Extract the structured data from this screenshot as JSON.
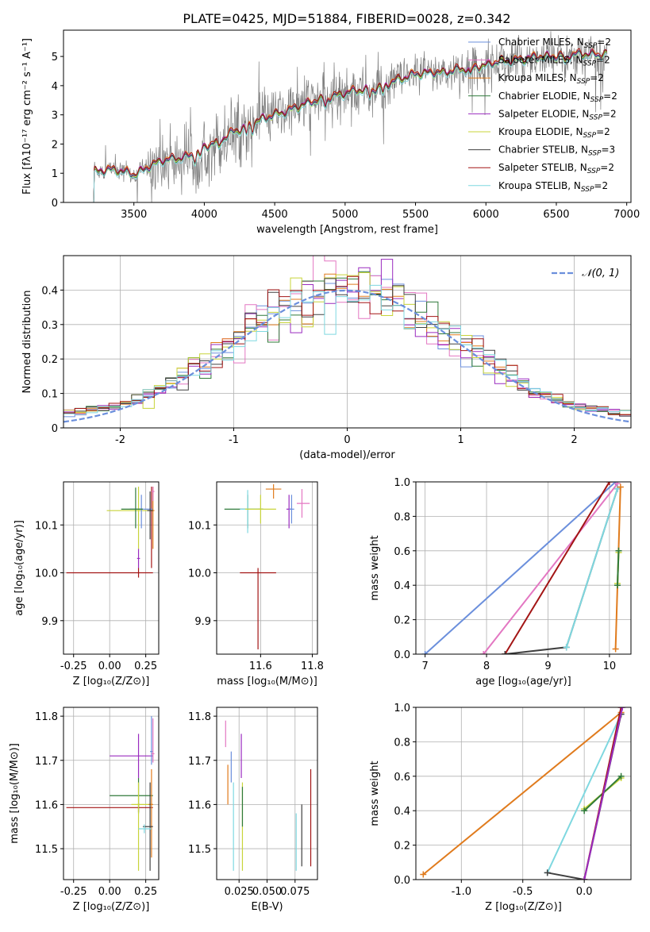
{
  "title": "PLATE=0425, MJD=51884, FIBERID=0028, z=0.342",
  "colors": {
    "chabrier_miles": "#6b8fdc",
    "salpeter_miles": "#e377c2",
    "kroupa_miles": "#e07b1d",
    "chabrier_elodie": "#2f7a3a",
    "salpeter_elodie": "#9a2bbf",
    "kroupa_elodie": "#c8d43a",
    "chabrier_stelib": "#404040",
    "salpeter_stelib": "#a31515",
    "kroupa_stelib": "#7fd8e0",
    "data": "#808080",
    "normal": "#6b8fdc"
  },
  "chart_data": [
    {
      "id": "spectrum",
      "type": "line",
      "xlabel": "wavelength [Angstrom, rest frame]",
      "ylabel": "Flux [fλ10⁻¹⁷ erg cm⁻² s⁻¹ A⁻¹]",
      "xlim": [
        3000,
        7030
      ],
      "ylim": [
        0,
        5.9
      ],
      "xticks": [
        3500,
        4000,
        4500,
        5000,
        5500,
        6000,
        6500,
        7000
      ],
      "yticks": [
        0,
        1,
        2,
        3,
        4,
        5
      ],
      "legend_position": "top-right",
      "data_range": [
        3215,
        6860
      ],
      "continuum": [
        [
          3215,
          0
        ],
        [
          3216,
          1.05
        ],
        [
          3300,
          1.12
        ],
        [
          3400,
          1.1
        ],
        [
          3500,
          0.95
        ],
        [
          3600,
          1.2
        ],
        [
          3700,
          1.45
        ],
        [
          3800,
          1.5
        ],
        [
          3900,
          1.6
        ],
        [
          4000,
          1.9
        ],
        [
          4100,
          2.1
        ],
        [
          4200,
          2.4
        ],
        [
          4300,
          2.6
        ],
        [
          4400,
          2.85
        ],
        [
          4500,
          3.0
        ],
        [
          4600,
          3.15
        ],
        [
          4700,
          3.35
        ],
        [
          4800,
          3.5
        ],
        [
          4900,
          3.6
        ],
        [
          5000,
          3.75
        ],
        [
          5100,
          3.85
        ],
        [
          5200,
          3.85
        ],
        [
          5300,
          4.05
        ],
        [
          5400,
          4.25
        ],
        [
          5500,
          4.4
        ],
        [
          5600,
          4.45
        ],
        [
          5700,
          4.45
        ],
        [
          5800,
          4.55
        ],
        [
          5900,
          4.6
        ],
        [
          6000,
          4.7
        ],
        [
          6100,
          4.85
        ],
        [
          6200,
          4.85
        ],
        [
          6300,
          4.95
        ],
        [
          6400,
          5.0
        ],
        [
          6500,
          5.0
        ],
        [
          6600,
          5.05
        ],
        [
          6700,
          5.1
        ],
        [
          6800,
          5.05
        ],
        [
          6860,
          5.1
        ]
      ],
      "series": [
        {
          "name": "Chabrier MILES, N",
          "sub": "SSP",
          "suffix": "=2",
          "color": "#6b8fdc",
          "offset": 0.0
        },
        {
          "name": "Salpeter MILES, N",
          "sub": "SSP",
          "suffix": "=2",
          "color": "#e377c2",
          "offset": 0.03
        },
        {
          "name": "Kroupa MILES, N",
          "sub": "SSP",
          "suffix": "=2",
          "color": "#e07b1d",
          "offset": 0.05
        },
        {
          "name": "Chabrier ELODIE, N",
          "sub": "SSP",
          "suffix": "=2",
          "color": "#2f7a3a",
          "offset": -0.02
        },
        {
          "name": "Salpeter ELODIE, N",
          "sub": "SSP",
          "suffix": "=2",
          "color": "#9a2bbf",
          "offset": 0.02
        },
        {
          "name": "Kroupa ELODIE, N",
          "sub": "SSP",
          "suffix": "=2",
          "color": "#c8d43a",
          "offset": -0.04
        },
        {
          "name": "Chabrier STELIB, N",
          "sub": "SSP",
          "suffix": "=3",
          "color": "#404040",
          "offset": -0.01
        },
        {
          "name": "Salpeter STELIB, N",
          "sub": "SSP",
          "suffix": "=2",
          "color": "#a31515",
          "offset": 0.04
        },
        {
          "name": "Kroupa STELIB, N",
          "sub": "SSP",
          "suffix": "=2",
          "color": "#7fd8e0",
          "offset": -0.08
        }
      ]
    },
    {
      "id": "residuals",
      "type": "line",
      "xlabel": "(data-model)/error",
      "ylabel": "Normed distribution",
      "xlim": [
        -2.5,
        2.5
      ],
      "ylim": [
        0,
        0.5
      ],
      "xticks": [
        -2,
        -1,
        0,
        1,
        2
      ],
      "yticks": [
        0.0,
        0.1,
        0.2,
        0.3,
        0.4
      ],
      "grid": true,
      "legend_position": "top-right",
      "reference": {
        "name": "𝒩(0, 1)"
      },
      "bin_width": 0.1,
      "series_colors": [
        "#6b8fdc",
        "#e377c2",
        "#e07b1d",
        "#2f7a3a",
        "#9a2bbf",
        "#c8d43a",
        "#404040",
        "#a31515",
        "#7fd8e0"
      ]
    },
    {
      "id": "age_vs_Z",
      "type": "scatter",
      "xlabel": "Z [log₁₀(Z/Z⊙)]",
      "ylabel": "age  [log₁₀(age/yr)]",
      "xlim": [
        -0.32,
        0.34
      ],
      "ylim": [
        9.83,
        10.19
      ],
      "xticks": [
        "-0.25",
        "0.00",
        "0.25"
      ],
      "xtick_values": [
        -0.25,
        0.0,
        0.25
      ],
      "yticks": [
        "9.9",
        "10.0",
        "10.1"
      ],
      "ytick_values": [
        9.9,
        10.0,
        10.1
      ],
      "grid": true,
      "points": [
        {
          "x": 0.29,
          "y": 10.13,
          "xerr": [
            0.01,
            0.01
          ],
          "yerr": [
            0.12,
            0.05
          ],
          "color": "#a31515"
        },
        {
          "x": 0.2,
          "y": 10.0,
          "xerr": [
            0.5,
            0.1
          ],
          "yerr": [
            0.01,
            0.01
          ],
          "color": "#a31515"
        },
        {
          "x": 0.2,
          "y": 10.13,
          "xerr": [
            0.22,
            0.1
          ],
          "yerr": [
            0.08,
            0.05
          ],
          "color": "#c8d43a"
        },
        {
          "x": 0.22,
          "y": 10.133,
          "xerr": [
            0.08,
            0.08
          ],
          "yerr": [
            0.04,
            0.03
          ],
          "color": "#6b8fdc"
        },
        {
          "x": 0.18,
          "y": 10.133,
          "xerr": [
            0.1,
            0.05
          ],
          "yerr": [
            0.04,
            0.045
          ],
          "color": "#2f7a3a"
        },
        {
          "x": 0.3,
          "y": 10.13,
          "xerr": [
            0.02,
            0.01
          ],
          "yerr": [
            0.08,
            0.05
          ],
          "color": "#e07b1d"
        },
        {
          "x": 0.28,
          "y": 10.13,
          "xerr": [
            0.02,
            0.02
          ],
          "yerr": [
            0.06,
            0.04
          ],
          "color": "#404040"
        },
        {
          "x": 0.2,
          "y": 10.03,
          "xerr": [
            0.01,
            0.01
          ],
          "yerr": [
            0.02,
            0.02
          ],
          "color": "#9a2bbf"
        },
        {
          "x": 0.3,
          "y": 10.17,
          "xerr": [
            0.01,
            0.01
          ],
          "yerr": [
            0.02,
            0.01
          ],
          "color": "#e377c2"
        }
      ]
    },
    {
      "id": "age_vs_mass",
      "type": "scatter",
      "xlabel": "mass [log₁₀(M/M⊙)]",
      "xlim": [
        11.43,
        11.82
      ],
      "ylim": [
        9.83,
        10.19
      ],
      "xticks": [
        "11.6",
        "11.8"
      ],
      "xtick_values": [
        11.6,
        11.8
      ],
      "yticks": [
        "9.9",
        "10.0",
        "10.1"
      ],
      "ytick_values": [
        9.9,
        10.0,
        10.1
      ],
      "grid": true,
      "points": [
        {
          "x": 11.59,
          "y": 10.0,
          "xerr": [
            0.07,
            0.07
          ],
          "yerr": [
            0.16,
            0.01
          ],
          "color": "#a31515"
        },
        {
          "x": 11.55,
          "y": 10.133,
          "xerr": [
            0.09,
            0.06
          ],
          "yerr": [
            0.04,
            0.03
          ],
          "color": "#2f7a3a"
        },
        {
          "x": 11.55,
          "y": 10.133,
          "xerr": [
            0.03,
            0.04
          ],
          "yerr": [
            0.05,
            0.04
          ],
          "color": "#7fd8e0"
        },
        {
          "x": 11.6,
          "y": 10.133,
          "xerr": [
            0.06,
            0.06
          ],
          "yerr": [
            0.03,
            0.03
          ],
          "color": "#c8d43a"
        },
        {
          "x": 11.65,
          "y": 10.175,
          "xerr": [
            0.03,
            0.03
          ],
          "yerr": [
            0.02,
            0.01
          ],
          "color": "#e07b1d"
        },
        {
          "x": 11.71,
          "y": 10.133,
          "xerr": [
            0.01,
            0.01
          ],
          "yerr": [
            0.04,
            0.03
          ],
          "color": "#9a2bbf"
        },
        {
          "x": 11.76,
          "y": 10.145,
          "xerr": [
            0.02,
            0.03
          ],
          "yerr": [
            0.03,
            0.03
          ],
          "color": "#e377c2"
        },
        {
          "x": 11.72,
          "y": 10.133,
          "xerr": [
            0.01,
            0.01
          ],
          "yerr": [
            0.03,
            0.03
          ],
          "color": "#6b8fdc"
        }
      ]
    },
    {
      "id": "mass_weight_vs_age",
      "type": "line",
      "xlabel": "age  [log₁₀(age/yr)]",
      "ylabel": "mass weight",
      "xlim": [
        6.85,
        10.35
      ],
      "ylim": [
        0,
        1
      ],
      "xticks": [
        7,
        8,
        9,
        10
      ],
      "yticks": [
        "0.0",
        "0.2",
        "0.4",
        "0.6",
        "0.8",
        "1.0"
      ],
      "ytick_values": [
        0,
        0.2,
        0.4,
        0.6,
        0.8,
        1.0
      ],
      "grid": true,
      "series": [
        {
          "color": "#6b8fdc",
          "points": [
            [
              7.0,
              0.0
            ],
            [
              10.1,
              1.0
            ]
          ]
        },
        {
          "color": "#e377c2",
          "points": [
            [
              7.95,
              0.0
            ],
            [
              10.13,
              0.99
            ]
          ]
        },
        {
          "color": "#a31515",
          "points": [
            [
              8.3,
              0.0
            ],
            [
              10.0,
              1.0
            ]
          ]
        },
        {
          "color": "#404040",
          "points": [
            [
              8.3,
              0.0
            ],
            [
              9.3,
              0.04
            ],
            [
              10.13,
              0.96
            ]
          ]
        },
        {
          "color": "#7fd8e0",
          "points": [
            [
              9.3,
              0.04
            ],
            [
              10.13,
              0.96
            ]
          ]
        },
        {
          "color": "#e07b1d",
          "points": [
            [
              10.1,
              0.03
            ],
            [
              10.18,
              0.97
            ]
          ]
        },
        {
          "color": "#c8d43a",
          "points": [
            [
              10.13,
              0.41
            ],
            [
              10.15,
              0.59
            ]
          ]
        },
        {
          "color": "#2f7a3a",
          "points": [
            [
              10.13,
              0.4
            ],
            [
              10.15,
              0.6
            ]
          ]
        }
      ]
    },
    {
      "id": "mass_vs_Z",
      "type": "scatter",
      "xlabel": "Z [log₁₀(Z/Z⊙)]",
      "ylabel": "mass [log₁₀(M/M⊙)]",
      "xlim": [
        -0.32,
        0.34
      ],
      "ylim": [
        11.43,
        11.82
      ],
      "xticks": [
        "-0.25",
        "0.00",
        "0.25"
      ],
      "xtick_values": [
        -0.25,
        0.0,
        0.25
      ],
      "yticks": [
        "11.5",
        "11.6",
        "11.7",
        "11.8"
      ],
      "ytick_values": [
        11.5,
        11.6,
        11.7,
        11.8
      ],
      "grid": true,
      "points": [
        {
          "x": 0.2,
          "y": 11.593,
          "xerr": [
            0.5,
            0.1
          ],
          "yerr": [
            0.01,
            0.01
          ],
          "color": "#a31515"
        },
        {
          "x": 0.2,
          "y": 11.62,
          "xerr": [
            0.2,
            0.1
          ],
          "yerr": [
            0.04,
            0.04
          ],
          "color": "#2f7a3a"
        },
        {
          "x": 0.2,
          "y": 11.71,
          "xerr": [
            0.2,
            0.1
          ],
          "yerr": [
            0.05,
            0.05
          ],
          "color": "#9a2bbf"
        },
        {
          "x": 0.2,
          "y": 11.6,
          "xerr": [
            0.05,
            0.1
          ],
          "yerr": [
            0.15,
            0.05
          ],
          "color": "#c8d43a"
        },
        {
          "x": 0.29,
          "y": 11.6,
          "xerr": [
            0.02,
            0.01
          ],
          "yerr": [
            0.12,
            0.08
          ],
          "color": "#e07b1d"
        },
        {
          "x": 0.28,
          "y": 11.55,
          "xerr": [
            0.05,
            0.02
          ],
          "yerr": [
            0.1,
            0.1
          ],
          "color": "#404040"
        },
        {
          "x": 0.24,
          "y": 11.545,
          "xerr": [
            0.04,
            0.05
          ],
          "yerr": [
            0.01,
            0.01
          ],
          "color": "#7fd8e0"
        },
        {
          "x": 0.29,
          "y": 11.72,
          "xerr": [
            0.01,
            0.01
          ],
          "yerr": [
            0.03,
            0.08
          ],
          "color": "#6b8fdc"
        },
        {
          "x": 0.3,
          "y": 11.715,
          "xerr": [
            0.01,
            0.01
          ],
          "yerr": [
            0.02,
            0.08
          ],
          "color": "#e377c2"
        }
      ]
    },
    {
      "id": "mass_vs_ebv",
      "type": "scatter",
      "xlabel": "E(B-V)",
      "xlim": [
        0.005,
        0.095
      ],
      "ylim": [
        11.43,
        11.82
      ],
      "xticks": [
        "0.025",
        "0.050",
        "0.075"
      ],
      "xtick_values": [
        0.025,
        0.05,
        0.075
      ],
      "yticks": [
        "11.5",
        "11.6",
        "11.7",
        "11.8"
      ],
      "ytick_values": [
        11.5,
        11.6,
        11.7,
        11.8
      ],
      "grid": true,
      "points": [
        {
          "x": 0.013,
          "y": 11.76,
          "yerr": [
            0.03,
            0.03
          ],
          "color": "#e377c2"
        },
        {
          "x": 0.015,
          "y": 11.65,
          "yerr": [
            0.05,
            0.04
          ],
          "color": "#e07b1d"
        },
        {
          "x": 0.018,
          "y": 11.68,
          "yerr": [
            0.03,
            0.04
          ],
          "color": "#6b8fdc"
        },
        {
          "x": 0.02,
          "y": 11.6,
          "yerr": [
            0.15,
            0.05
          ],
          "color": "#7fd8e0"
        },
        {
          "x": 0.027,
          "y": 11.71,
          "yerr": [
            0.05,
            0.05
          ],
          "color": "#9a2bbf"
        },
        {
          "x": 0.028,
          "y": 11.55,
          "yerr": [
            0.1,
            0.1
          ],
          "color": "#c8d43a"
        },
        {
          "x": 0.028,
          "y": 11.6,
          "yerr": [
            0.05,
            0.04
          ],
          "color": "#2f7a3a"
        },
        {
          "x": 0.076,
          "y": 11.53,
          "yerr": [
            0.08,
            0.05
          ],
          "color": "#7fd8e0"
        },
        {
          "x": 0.081,
          "y": 11.53,
          "yerr": [
            0.07,
            0.07
          ],
          "color": "#404040"
        },
        {
          "x": 0.089,
          "y": 11.57,
          "yerr": [
            0.11,
            0.11
          ],
          "color": "#a31515"
        }
      ]
    },
    {
      "id": "mass_weight_vs_Z",
      "type": "line",
      "xlabel": "Z [log₁₀(Z/Z⊙)]",
      "ylabel": "mass weight",
      "xlim": [
        -1.37,
        0.38
      ],
      "ylim": [
        0,
        1
      ],
      "xticks": [
        "-1.0",
        "-0.5",
        "0.0"
      ],
      "xtick_values": [
        -1.0,
        -0.5,
        0.0
      ],
      "yticks": [
        "0.0",
        "0.2",
        "0.4",
        "0.6",
        "0.8",
        "1.0"
      ],
      "ytick_values": [
        0,
        0.2,
        0.4,
        0.6,
        0.8,
        1.0
      ],
      "grid": true,
      "series": [
        {
          "color": "#e07b1d",
          "points": [
            [
              -1.31,
              0.03
            ],
            [
              0.3,
              0.97
            ]
          ]
        },
        {
          "color": "#7fd8e0",
          "points": [
            [
              -0.3,
              0.04
            ],
            [
              0.3,
              0.96
            ]
          ]
        },
        {
          "color": "#404040",
          "points": [
            [
              -0.3,
              0.04
            ],
            [
              0.0,
              0.0
            ],
            [
              0.3,
              0.96
            ]
          ]
        },
        {
          "color": "#c8d43a",
          "points": [
            [
              0.0,
              0.41
            ],
            [
              0.3,
              0.59
            ]
          ]
        },
        {
          "color": "#2f7a3a",
          "points": [
            [
              0.0,
              0.4
            ],
            [
              0.3,
              0.6
            ]
          ]
        },
        {
          "color": "#a31515",
          "points": [
            [
              0.0,
              0.0
            ],
            [
              0.3,
              1.0
            ]
          ]
        },
        {
          "color": "#9a2bbf",
          "points": [
            [
              0.0,
              0.0
            ],
            [
              0.31,
              1.0
            ]
          ]
        }
      ]
    }
  ]
}
